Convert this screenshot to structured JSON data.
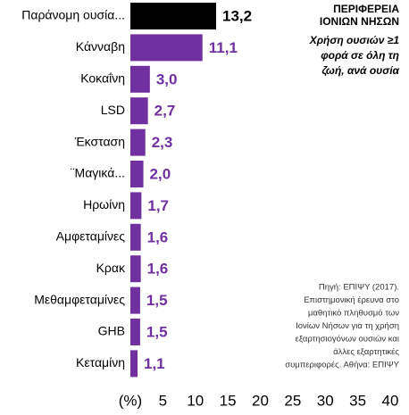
{
  "chart_data": {
    "type": "barh",
    "categories": [
      "Παράνομη ουσία...",
      "Κάνναβη",
      "Κοκαΐνη",
      "LSD",
      "Έκσταση",
      "¨Μαγικά...",
      "Ηρωίνη",
      "Αμφεταμίνες",
      "Κρακ",
      "Μεθαμφεταμίνες",
      "GHB",
      "Κεταμίνη"
    ],
    "values": [
      13.2,
      11.1,
      3.0,
      2.7,
      2.3,
      2.0,
      1.7,
      1.6,
      1.6,
      1.5,
      1.5,
      1.1
    ],
    "value_labels": [
      "13,2",
      "11,1",
      "3,0",
      "2,7",
      "2,3",
      "2,0",
      "1,7",
      "1,6",
      "1,6",
      "1,5",
      "1,5",
      "1,1"
    ],
    "colors": [
      "#000000",
      "#7030a0",
      "#7030a0",
      "#7030a0",
      "#7030a0",
      "#7030a0",
      "#7030a0",
      "#7030a0",
      "#7030a0",
      "#7030a0",
      "#7030a0",
      "#7030a0"
    ],
    "xlim": [
      0,
      40
    ],
    "xticks": [
      {
        "value": 0,
        "label": "(%)"
      },
      5,
      10,
      15,
      20,
      25,
      30,
      35,
      40
    ],
    "title_lines": [
      "ΠΕΡΙΦΕΡΕΙΑ",
      "ΙΟΝΙΩΝ ΝΗΣΩΝ"
    ],
    "subtitle_lines": [
      "Χρήση ουσιών ≥1",
      "φορά σε όλη τη",
      "ζωή, ανά ουσία"
    ],
    "source_lines": [
      "Πηγή: ΕΠΙΨΥ (2017).",
      "Επιστημονική έρευνα στο",
      "μαθητικό πληθυσμό των",
      "Ιονίων Νήσων για τη χρήση",
      "εξαρτησιογόνων ουσιών και",
      "άλλες εξαρτητικές",
      "συμπεριφορές. Αθήνα: ΕΠΙΨΥ"
    ]
  }
}
